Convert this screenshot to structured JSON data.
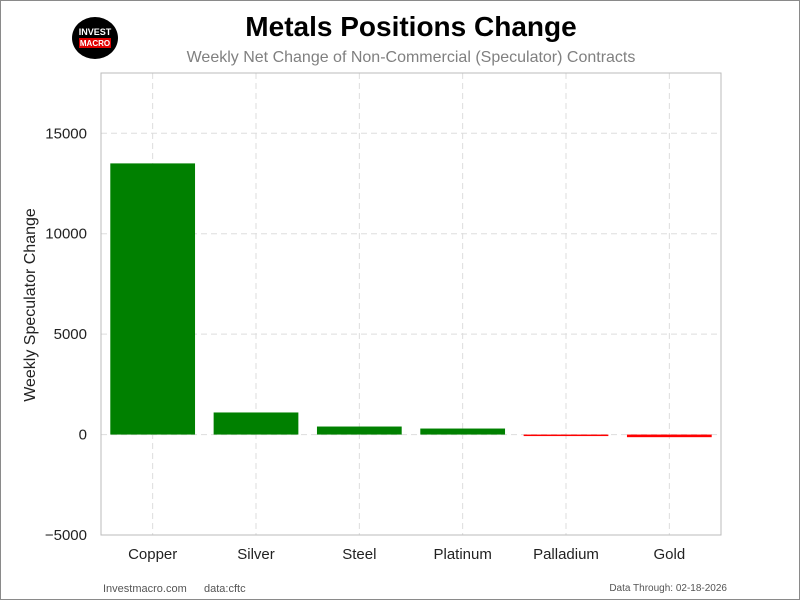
{
  "header": {
    "title": "Metals Positions Change",
    "subtitle": "Weekly Net Change of Non-Commercial (Speculator) Contracts"
  },
  "logo": {
    "line1": "INVEST",
    "line2": "MACRO"
  },
  "footer": {
    "source_site": "Investmacro.com",
    "source_data": "data:cftc",
    "data_through": "Data Through: 02-18-2026"
  },
  "colors": {
    "positive": "#008000",
    "negative": "#ff0000",
    "grid": "#dddddd",
    "frame": "#bbbbbb"
  },
  "chart_data": {
    "type": "bar",
    "title": "Metals Positions Change",
    "subtitle": "Weekly Net Change of Non-Commercial (Speculator) Contracts",
    "xlabel": "",
    "ylabel": "Weekly Speculator Change",
    "categories": [
      "Copper",
      "Silver",
      "Steel",
      "Platinum",
      "Palladium",
      "Gold"
    ],
    "values": [
      13500,
      1100,
      400,
      300,
      -50,
      -130
    ],
    "ylim": [
      -5000,
      18000
    ],
    "yticks": [
      -5000,
      0,
      5000,
      10000,
      15000
    ],
    "ytick_labels": [
      "−5000",
      "0",
      "5000",
      "10000",
      "15000"
    ],
    "grid": true
  }
}
